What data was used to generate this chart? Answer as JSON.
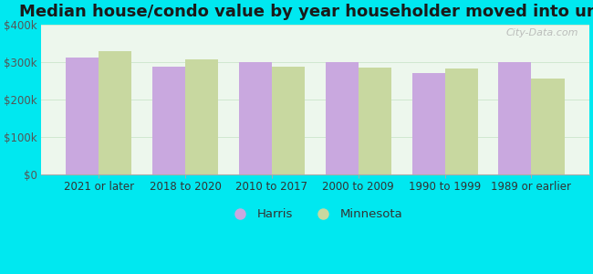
{
  "title": "Median house/condo value by year householder moved into unit",
  "categories": [
    "2021 or later",
    "2018 to 2020",
    "2010 to 2017",
    "2000 to 2009",
    "1990 to 1999",
    "1989 or earlier"
  ],
  "harris_values": [
    310000,
    287000,
    299000,
    299000,
    270000,
    298000
  ],
  "minnesota_values": [
    328000,
    305000,
    287000,
    285000,
    282000,
    254000
  ],
  "harris_color": "#c9a8df",
  "minnesota_color": "#c8d8a0",
  "background_color": "#00e8f0",
  "plot_bg_top": "#eaf5ea",
  "plot_bg_bottom": "#f5fcf5",
  "ylim": [
    0,
    400000
  ],
  "yticks": [
    0,
    100000,
    200000,
    300000,
    400000
  ],
  "ytick_labels": [
    "$0",
    "$100k",
    "$200k",
    "$300k",
    "$400k"
  ],
  "legend_labels": [
    "Harris",
    "Minnesota"
  ],
  "bar_width": 0.38,
  "title_fontsize": 13,
  "tick_fontsize": 8.5,
  "legend_fontsize": 9.5,
  "watermark_text": "City-Data.com"
}
